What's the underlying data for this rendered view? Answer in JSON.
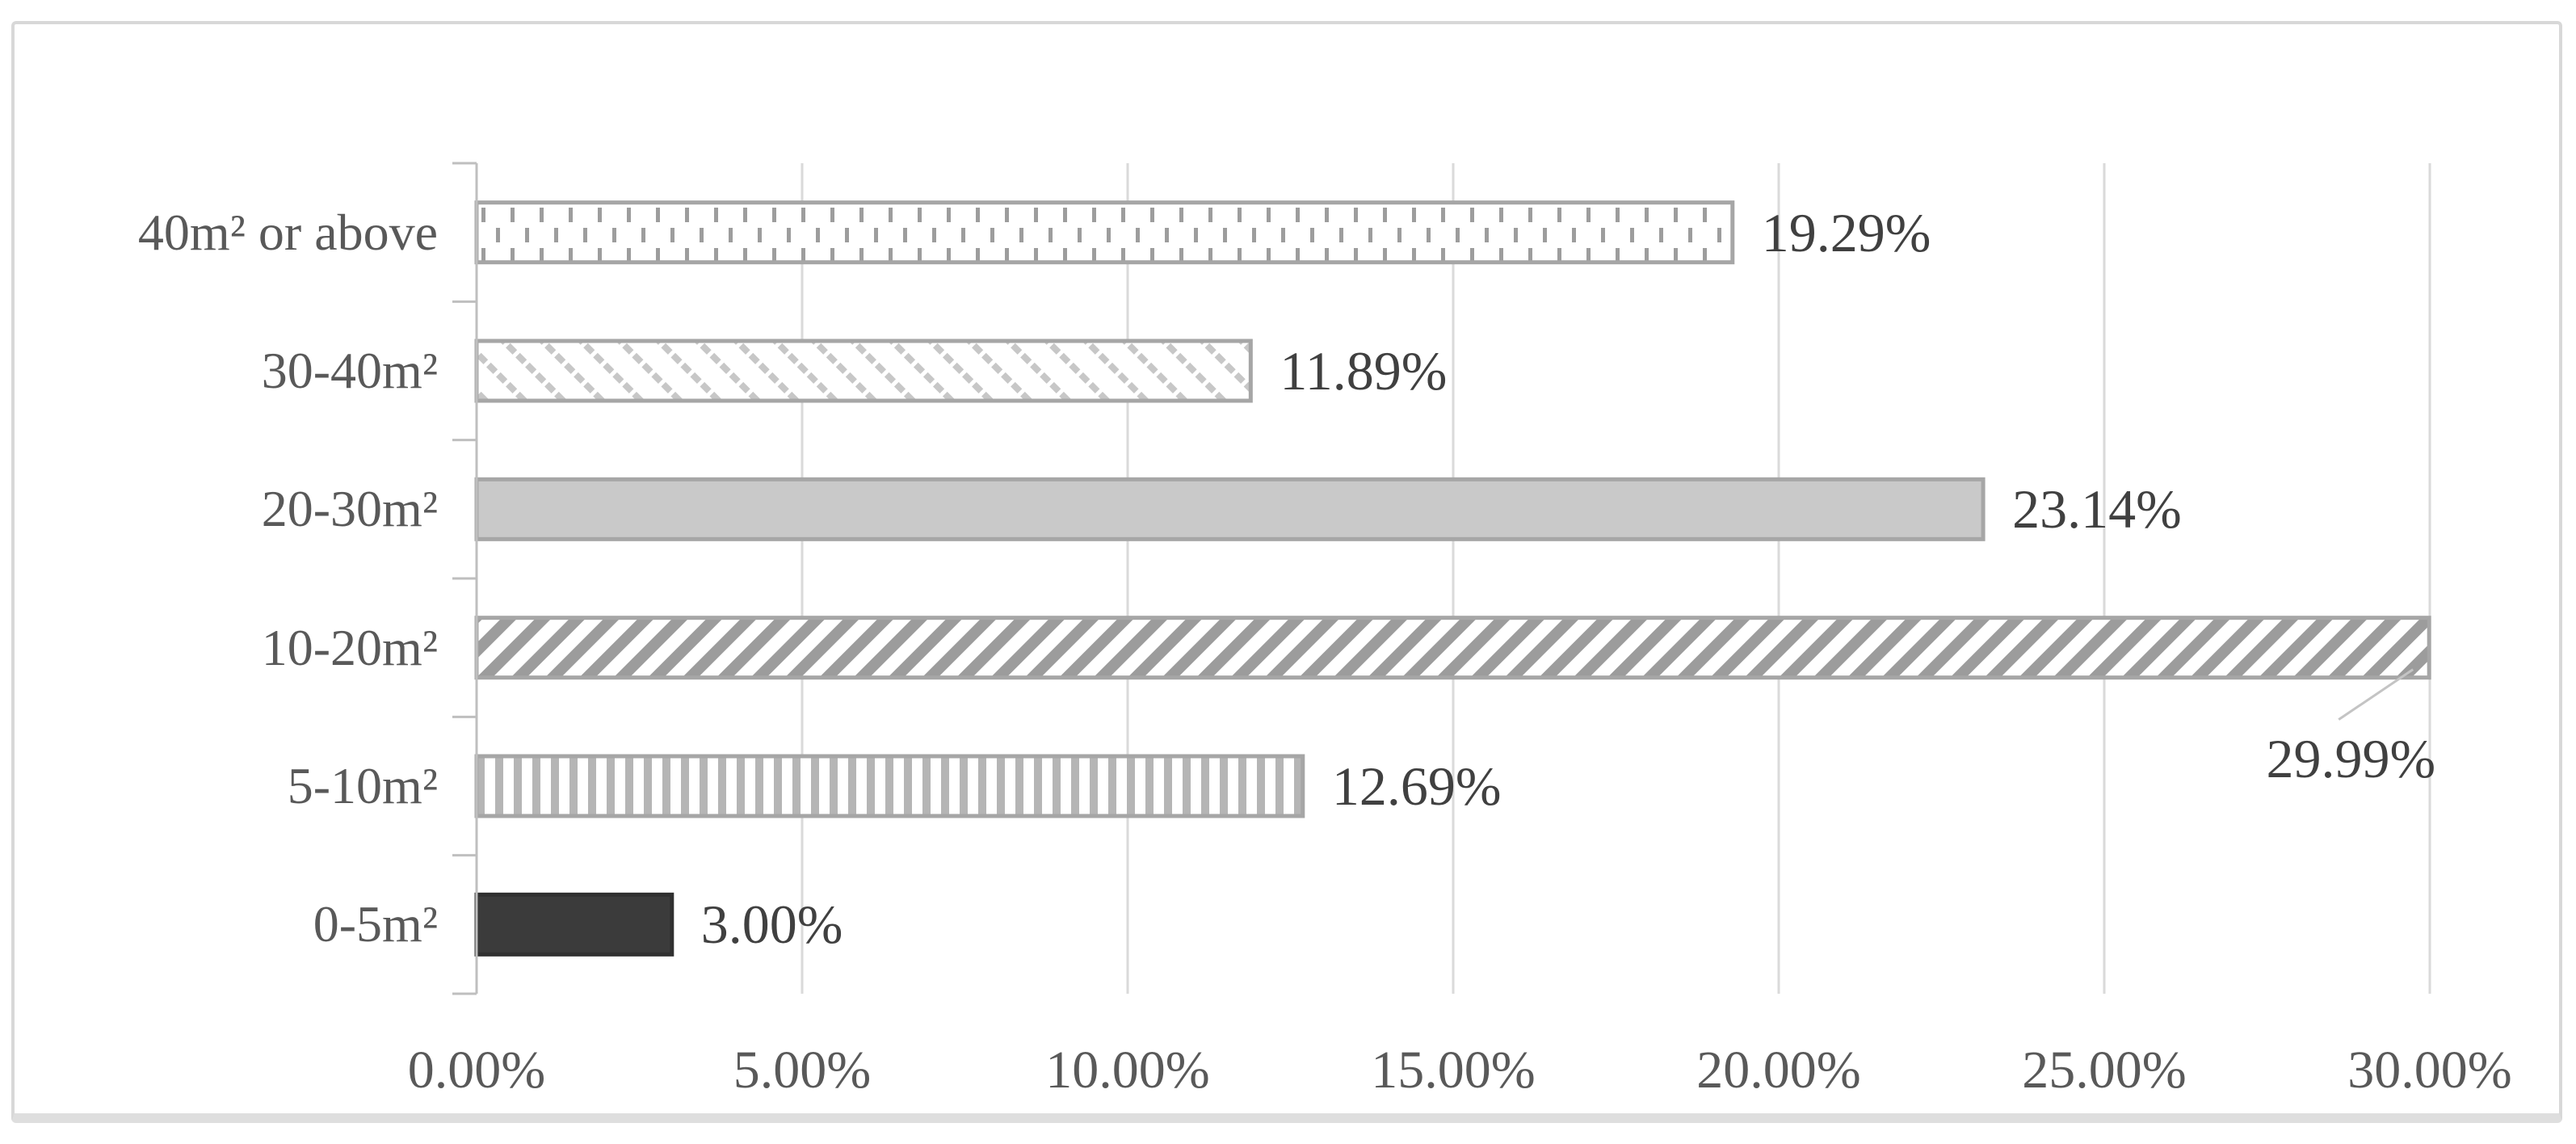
{
  "figure": {
    "background": "#ffffff",
    "border_color": "#d8d8d8",
    "bottom_shadow_color": "#dedede"
  },
  "chart_data": {
    "type": "bar",
    "orientation": "horizontal",
    "title": "",
    "xlabel": "",
    "ylabel": "",
    "xlim": [
      0,
      30
    ],
    "x_tick_step": 5,
    "x_tick_labels": [
      "0.00%",
      "5.00%",
      "10.00%",
      "15.00%",
      "20.00%",
      "25.00%",
      "30.00%"
    ],
    "grid": "vertical-gridlines-on",
    "legend": "none",
    "categories_top_to_bottom": [
      "40m² or above",
      "30-40m²",
      "20-30m²",
      "10-20m²",
      "5-10m²",
      "0-5m²"
    ],
    "values": [
      19.29,
      11.89,
      23.14,
      29.99,
      12.69,
      3.0
    ],
    "data_labels": [
      "19.29%",
      "11.89%",
      "23.14%",
      "29.99%",
      "12.69%",
      "3.00%"
    ],
    "bar_styles": [
      {
        "pattern": "dashed-vertical",
        "fg": "#9d9d9d",
        "bg": "#ffffff",
        "border": "#a6a6a6"
      },
      {
        "pattern": "light-downward-diagonal",
        "fg": "#c7c7c7",
        "bg": "#ffffff",
        "border": "#a6a6a6"
      },
      {
        "pattern": "solid",
        "fg": "#c9c9c9",
        "bg": "#c9c9c9",
        "border": "#a6a6a6"
      },
      {
        "pattern": "wide-upward-diagonal",
        "fg": "#9c9c9c",
        "bg": "#ffffff",
        "border": "#a6a6a6"
      },
      {
        "pattern": "vertical-stripes",
        "fg": "#b5b5b5",
        "bg": "#ffffff",
        "border": "#a6a6a6"
      },
      {
        "pattern": "solid",
        "fg": "#3b3b3b",
        "bg": "#3b3b3b",
        "border": "#303030"
      }
    ],
    "callout": {
      "series_index": 3,
      "style": "leader-line-to-label-below-bar-end",
      "line_color": "#c4c4c4"
    },
    "axis_color": "#bfbfbf",
    "gridline_color": "#dadada",
    "data_label_color": "#404040",
    "tick_label_color": "#595959"
  }
}
